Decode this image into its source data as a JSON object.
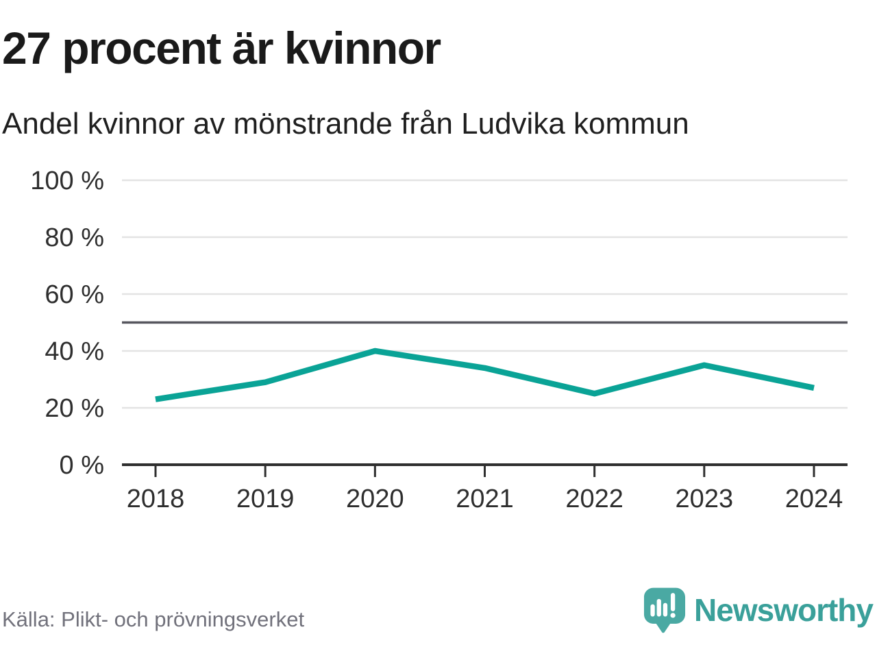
{
  "chart_data": {
    "type": "line",
    "title": "27 procent är kvinnor",
    "subtitle": "Andel kvinnor av mönstrande från Ludvika kommun",
    "x": [
      "2018",
      "2019",
      "2020",
      "2021",
      "2022",
      "2023",
      "2024"
    ],
    "values": [
      23,
      29,
      40,
      34,
      25,
      35,
      27
    ],
    "series_name": "Andel kvinnor av mönstrande",
    "unit": "%",
    "ylim": [
      0,
      100
    ],
    "yticks": [
      0,
      20,
      40,
      60,
      80,
      100
    ],
    "ytick_suffix": " %",
    "reference_line": 50,
    "grid": true,
    "legend_position": "none",
    "line_color": "#0aa396",
    "grid_color": "#e3e3e3",
    "reference_line_color": "#56565e",
    "axis_color": "#2f2f2f",
    "tick_label_color": "#2e2e2e"
  },
  "footer": {
    "source": "Källa: Plikt- och prövningsverket",
    "brand_name": "Newsworthy",
    "brand_color": "#3aa09a",
    "logo_color": "#4aa9a3"
  }
}
